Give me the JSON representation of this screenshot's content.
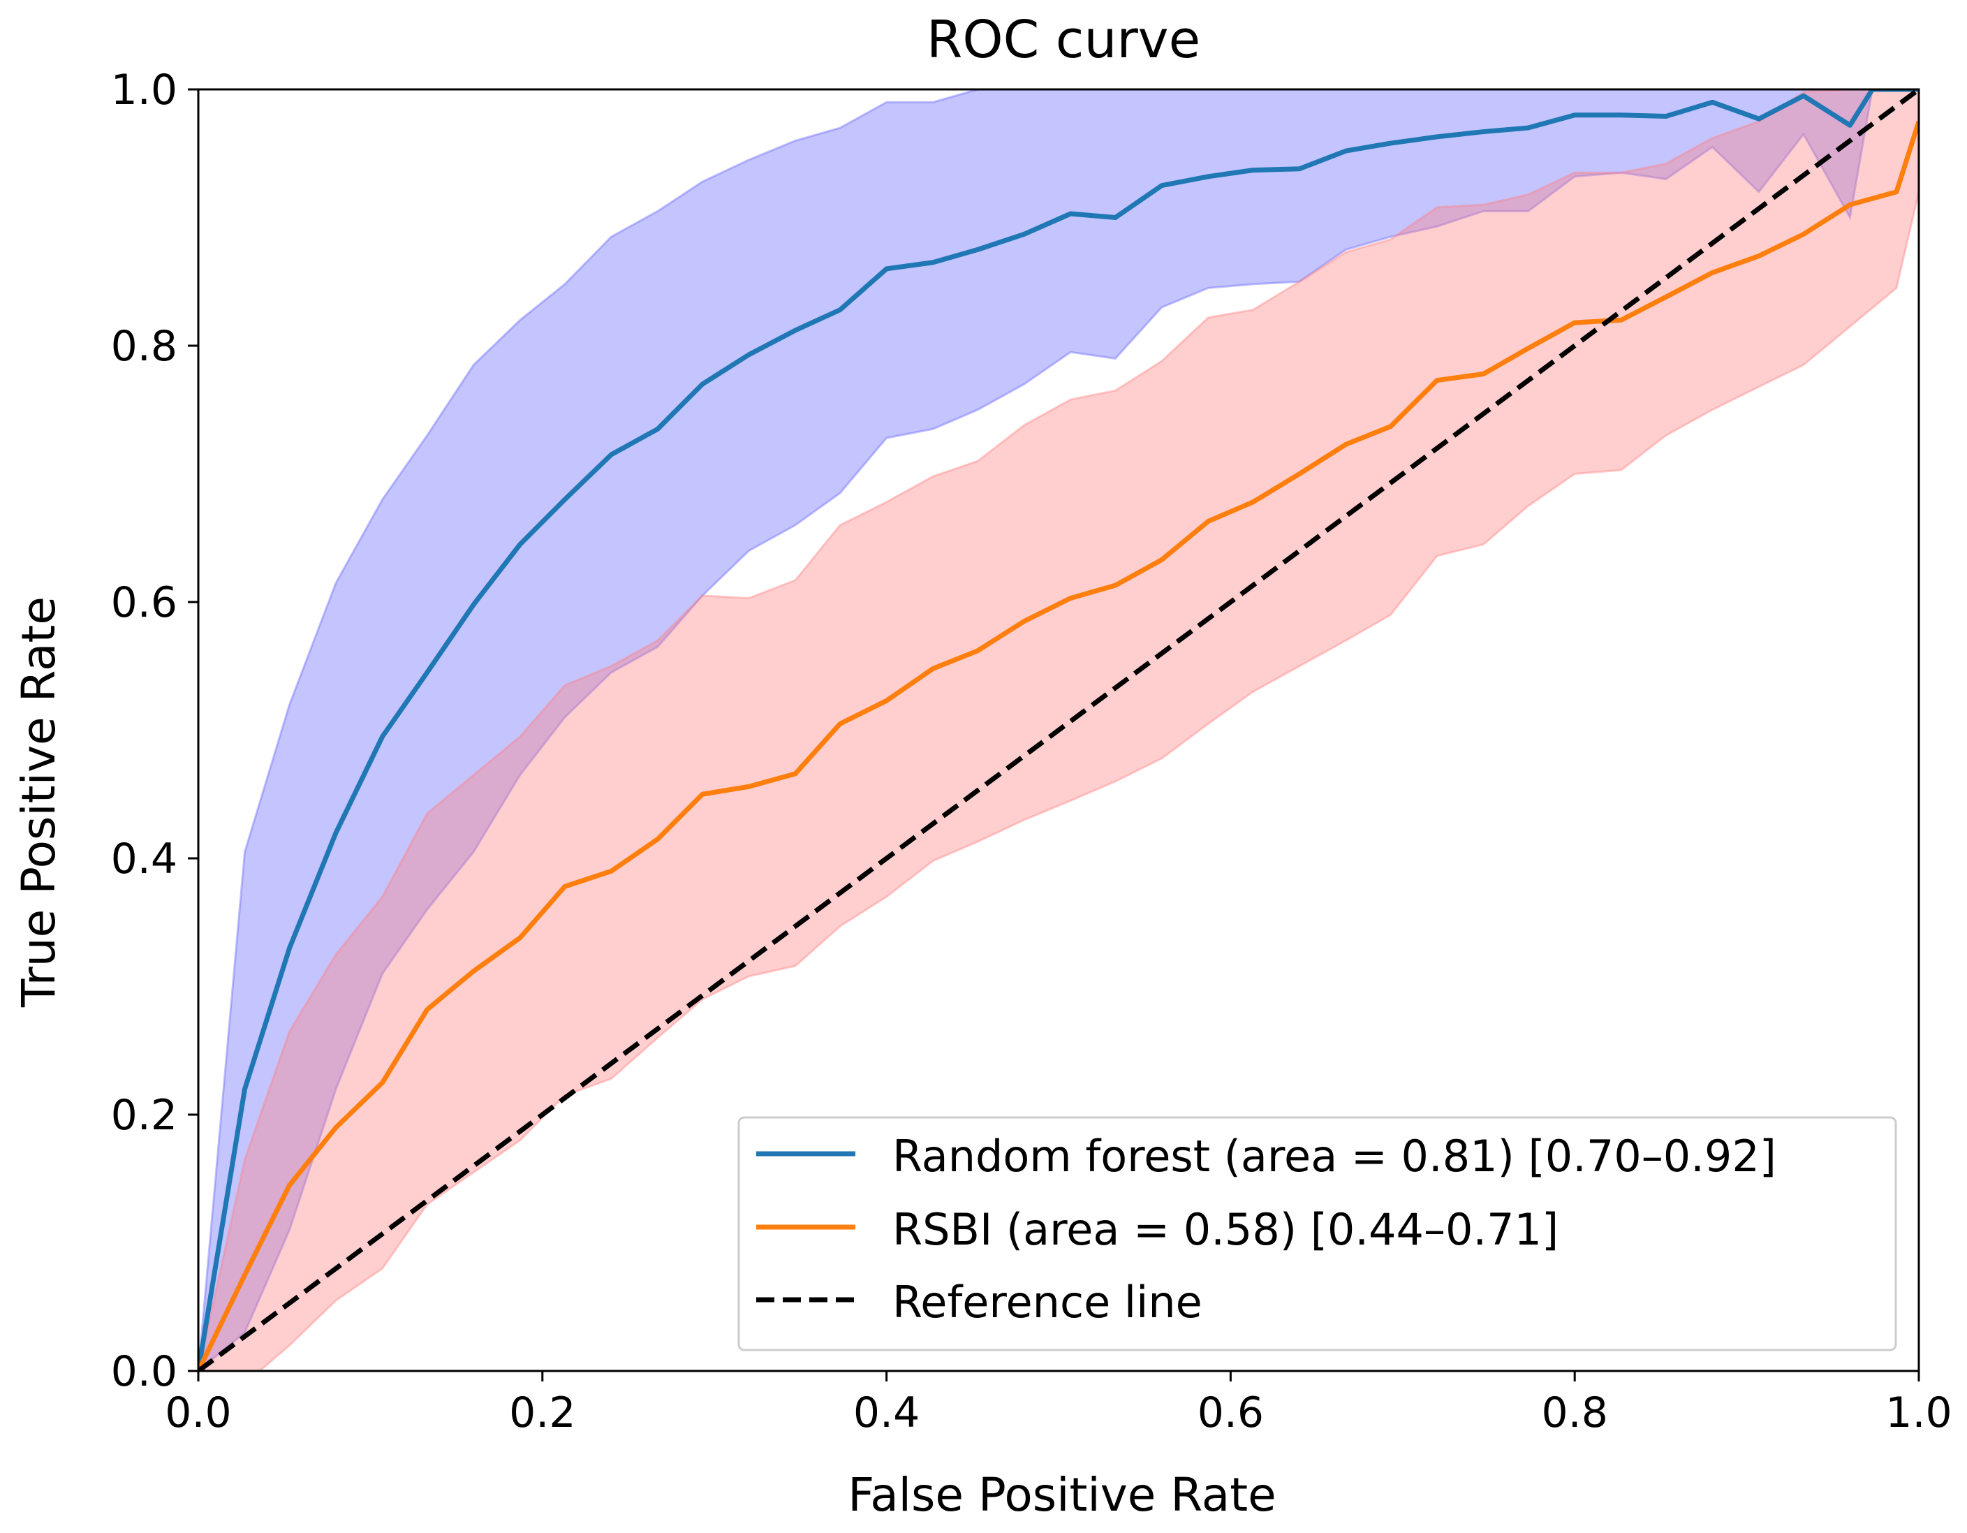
{
  "chart_data": {
    "type": "line",
    "title": "ROC curve",
    "xlabel": "False Positive Rate",
    "ylabel": "True Positive Rate",
    "xlim": [
      0.0,
      1.0
    ],
    "ylim": [
      0.0,
      1.0
    ],
    "xticks": [
      "0.0",
      "0.2",
      "0.4",
      "0.6",
      "0.8",
      "1.0"
    ],
    "yticks": [
      "0.0",
      "0.2",
      "0.4",
      "0.6",
      "0.8",
      "1.0"
    ],
    "legend_position": "bottom-right",
    "grid": false,
    "series": [
      {
        "name": "Random forest (area = 0.81) [0.70–0.92]",
        "color": "#1f77b4",
        "band_color": "#6464ff",
        "x": [
          0.0,
          0.027,
          0.053,
          0.08,
          0.107,
          0.133,
          0.16,
          0.187,
          0.213,
          0.24,
          0.267,
          0.293,
          0.32,
          0.347,
          0.373,
          0.4,
          0.427,
          0.453,
          0.48,
          0.507,
          0.533,
          0.56,
          0.587,
          0.613,
          0.64,
          0.667,
          0.693,
          0.72,
          0.747,
          0.773,
          0.8,
          0.827,
          0.853,
          0.88,
          0.907,
          0.933,
          0.96,
          0.973,
          1.0
        ],
        "values": [
          0.0,
          0.22,
          0.33,
          0.42,
          0.495,
          0.545,
          0.598,
          0.645,
          0.68,
          0.715,
          0.735,
          0.77,
          0.793,
          0.812,
          0.828,
          0.86,
          0.865,
          0.875,
          0.887,
          0.903,
          0.9,
          0.925,
          0.932,
          0.937,
          0.938,
          0.952,
          0.958,
          0.963,
          0.967,
          0.97,
          0.98,
          0.98,
          0.979,
          0.99,
          0.977,
          0.995,
          0.972,
          1.0,
          1.0
        ],
        "upper": [
          0.0,
          0.405,
          0.52,
          0.615,
          0.68,
          0.73,
          0.785,
          0.82,
          0.848,
          0.885,
          0.905,
          0.928,
          0.945,
          0.96,
          0.97,
          0.99,
          0.99,
          1.0,
          1.0,
          1.0,
          1.0,
          1.0,
          1.0,
          1.0,
          1.0,
          1.0,
          1.0,
          1.0,
          1.0,
          1.0,
          1.0,
          1.0,
          1.0,
          1.0,
          1.0,
          1.0,
          1.0,
          1.0,
          1.0
        ],
        "lower": [
          0.0,
          0.03,
          0.11,
          0.22,
          0.31,
          0.36,
          0.405,
          0.465,
          0.51,
          0.545,
          0.565,
          0.605,
          0.64,
          0.66,
          0.685,
          0.728,
          0.735,
          0.75,
          0.77,
          0.795,
          0.79,
          0.83,
          0.845,
          0.848,
          0.85,
          0.875,
          0.885,
          0.893,
          0.905,
          0.905,
          0.932,
          0.935,
          0.93,
          0.955,
          0.92,
          0.965,
          0.9,
          1.0,
          1.0
        ]
      },
      {
        "name": "RSBI (area = 0.58) [0.44–0.71]",
        "color": "#ff7f0e",
        "band_color": "#ff8080",
        "x": [
          0.0,
          0.027,
          0.053,
          0.08,
          0.107,
          0.133,
          0.16,
          0.187,
          0.213,
          0.24,
          0.267,
          0.293,
          0.32,
          0.347,
          0.373,
          0.4,
          0.427,
          0.453,
          0.48,
          0.507,
          0.533,
          0.56,
          0.587,
          0.613,
          0.64,
          0.667,
          0.693,
          0.72,
          0.747,
          0.773,
          0.8,
          0.827,
          0.853,
          0.88,
          0.907,
          0.933,
          0.96,
          0.987,
          1.0
        ],
        "values": [
          0.0,
          0.075,
          0.145,
          0.19,
          0.225,
          0.282,
          0.312,
          0.338,
          0.378,
          0.39,
          0.415,
          0.45,
          0.456,
          0.466,
          0.505,
          0.523,
          0.548,
          0.562,
          0.585,
          0.603,
          0.613,
          0.633,
          0.663,
          0.678,
          0.7,
          0.723,
          0.737,
          0.773,
          0.778,
          0.798,
          0.818,
          0.82,
          0.838,
          0.857,
          0.87,
          0.887,
          0.91,
          0.92,
          0.975
        ],
        "upper": [
          0.0,
          0.165,
          0.265,
          0.325,
          0.37,
          0.435,
          0.465,
          0.495,
          0.535,
          0.55,
          0.57,
          0.605,
          0.603,
          0.617,
          0.66,
          0.678,
          0.698,
          0.71,
          0.738,
          0.758,
          0.765,
          0.788,
          0.822,
          0.828,
          0.85,
          0.873,
          0.883,
          0.908,
          0.91,
          0.918,
          0.935,
          0.935,
          0.942,
          0.962,
          0.975,
          0.998,
          1.0,
          1.0,
          1.0
        ],
        "lower": [
          0.0,
          -0.01,
          0.02,
          0.055,
          0.08,
          0.13,
          0.155,
          0.18,
          0.215,
          0.228,
          0.26,
          0.29,
          0.308,
          0.316,
          0.347,
          0.37,
          0.398,
          0.413,
          0.43,
          0.445,
          0.46,
          0.478,
          0.505,
          0.53,
          0.55,
          0.57,
          0.59,
          0.636,
          0.645,
          0.675,
          0.7,
          0.703,
          0.73,
          0.75,
          0.768,
          0.785,
          0.815,
          0.845,
          0.92
        ]
      },
      {
        "name": "Reference line",
        "color": "#000000",
        "dashed": true,
        "x": [
          0.0,
          1.0
        ],
        "values": [
          0.0,
          1.0
        ]
      }
    ]
  }
}
